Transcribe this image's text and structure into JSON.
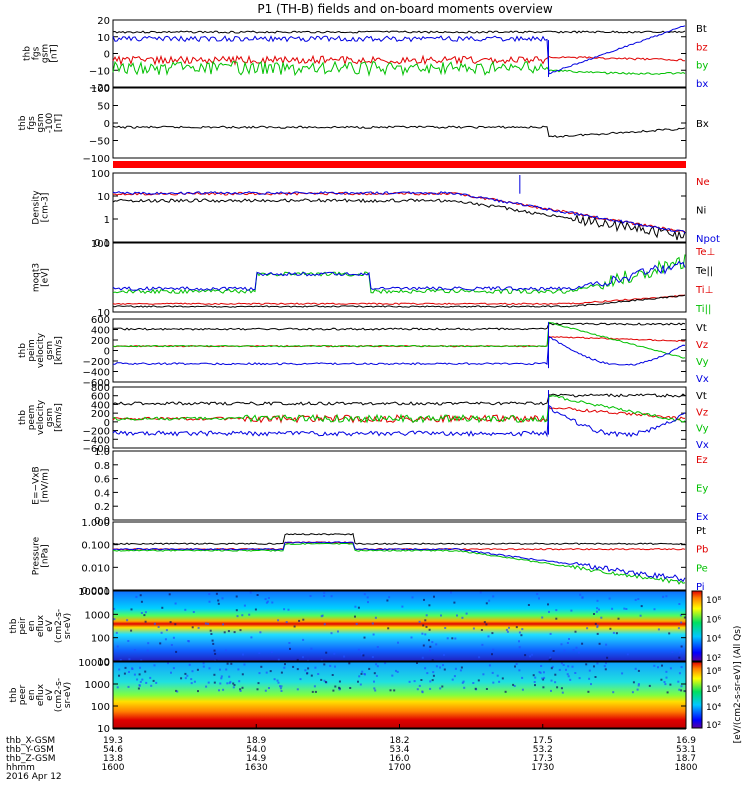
{
  "chart_data": {
    "type": "line",
    "title": "P1 (TH-B) fields and on-board moments overview",
    "panels": [
      {
        "ylabel": [
          "thb",
          "fgs",
          "gsm",
          "[nT]"
        ],
        "ticks": [
          "20",
          "10",
          "0",
          "−10",
          "−20"
        ],
        "legend": [
          {
            "label": "Bt",
            "color": "#000000"
          },
          {
            "label": "bz",
            "color": "#e00000"
          },
          {
            "label": "by",
            "color": "#00c000"
          },
          {
            "label": "bx",
            "color": "#0000e0"
          }
        ]
      },
      {
        "ylabel": [
          "thb",
          "fgs",
          "gsm",
          "-100",
          "[nT]"
        ],
        "ticks": [
          "100",
          "50",
          "0",
          "−50",
          "−100"
        ],
        "legend": [
          {
            "label": "Bx",
            "color": "#000000"
          }
        ]
      },
      {
        "ylabel": [
          "Density",
          "[cm-3]"
        ],
        "ticks": [
          "100",
          "10",
          "1",
          "0.1"
        ],
        "legend": [
          {
            "label": "Ne",
            "color": "#e00000"
          },
          {
            "label": "Ni",
            "color": "#000000"
          },
          {
            "label": "Npot",
            "color": "#0000e0"
          }
        ]
      },
      {
        "ylabel": [
          "moqt3",
          "[eV]"
        ],
        "ticks": [
          "100",
          "10"
        ],
        "legend": [
          {
            "label": "Te⊥",
            "color": "#e00000"
          },
          {
            "label": "Te||",
            "color": "#000000"
          },
          {
            "label": "Ti⊥",
            "color": "#e00000"
          },
          {
            "label": "Ti||",
            "color": "#00c000"
          }
        ]
      },
      {
        "ylabel": [
          "thb",
          "peim",
          "velocity",
          "gsm",
          "[km/s]"
        ],
        "ticks": [
          "600",
          "400",
          "200",
          "0",
          "−200",
          "−400",
          "−600"
        ],
        "legend": [
          {
            "label": "Vt",
            "color": "#000000"
          },
          {
            "label": "Vz",
            "color": "#e00000"
          },
          {
            "label": "Vy",
            "color": "#00c000"
          },
          {
            "label": "Vx",
            "color": "#0000e0"
          }
        ]
      },
      {
        "ylabel": [
          "thb",
          "peem",
          "velocity",
          "gsm",
          "[km/s]"
        ],
        "ticks": [
          "800",
          "600",
          "400",
          "200",
          "0",
          "−200",
          "−400",
          "−600"
        ],
        "legend": [
          {
            "label": "Vt",
            "color": "#000000"
          },
          {
            "label": "Vz",
            "color": "#e00000"
          },
          {
            "label": "Vy",
            "color": "#00c000"
          },
          {
            "label": "Vx",
            "color": "#0000e0"
          }
        ]
      },
      {
        "ylabel": [
          "E=−VxB",
          "[mV/m]"
        ],
        "ticks": [
          "1.0",
          "0.8",
          "0.6",
          "0.4",
          "0.2",
          "0.0"
        ],
        "legend": [
          {
            "label": "Ez",
            "color": "#e00000"
          },
          {
            "label": "Ey",
            "color": "#00c000"
          },
          {
            "label": "Ex",
            "color": "#0000e0"
          }
        ]
      },
      {
        "ylabel": [
          "Pressure",
          "[nPa]"
        ],
        "ticks": [
          "1.000",
          "0.100",
          "0.010",
          "0.001"
        ],
        "legend": [
          {
            "label": "Pt",
            "color": "#000000"
          },
          {
            "label": "Pb",
            "color": "#e00000"
          },
          {
            "label": "Pe",
            "color": "#00c000"
          },
          {
            "label": "Pi",
            "color": "#0000e0"
          }
        ]
      },
      {
        "ylabel": [
          "thb",
          "peir",
          "en",
          "eflux",
          "eV",
          "(cm2-s-",
          "sr-eV)"
        ],
        "ticks": [
          "10000",
          "1000",
          "100",
          "10"
        ],
        "legend": []
      },
      {
        "ylabel": [
          "thb",
          "peer",
          "en",
          "eflux",
          "eV",
          "(cm2-s-",
          "sr-eV)"
        ],
        "ticks": [
          "10000",
          "1000",
          "100",
          "10"
        ],
        "legend": []
      }
    ],
    "colorbar": {
      "label": "[eV/(cm2-s-sr-eV)] (All Qs)",
      "ticks_upper": [
        "10⁸",
        "10⁶",
        "10⁴",
        "10²"
      ],
      "ticks_lower": [
        "10⁸",
        "10⁶",
        "10⁴",
        "10²"
      ]
    },
    "time_axis": {
      "row_labels": [
        "thb_X-GSM",
        "thb_Y-GSM",
        "thb_Z-GSM",
        "hhmm",
        "2016 Apr 12"
      ],
      "columns": [
        {
          "x": "19.3",
          "y": "54.6",
          "z": "13.8",
          "t": "1600"
        },
        {
          "x": "18.9",
          "y": "54.0",
          "z": "14.9",
          "t": "1630"
        },
        {
          "x": "18.2",
          "y": "53.4",
          "z": "16.0",
          "t": "1700"
        },
        {
          "x": "17.5",
          "y": "53.2",
          "z": "17.3",
          "t": "1730"
        },
        {
          "x": "16.9",
          "y": "53.1",
          "z": "18.7",
          "t": "1800"
        }
      ]
    }
  }
}
